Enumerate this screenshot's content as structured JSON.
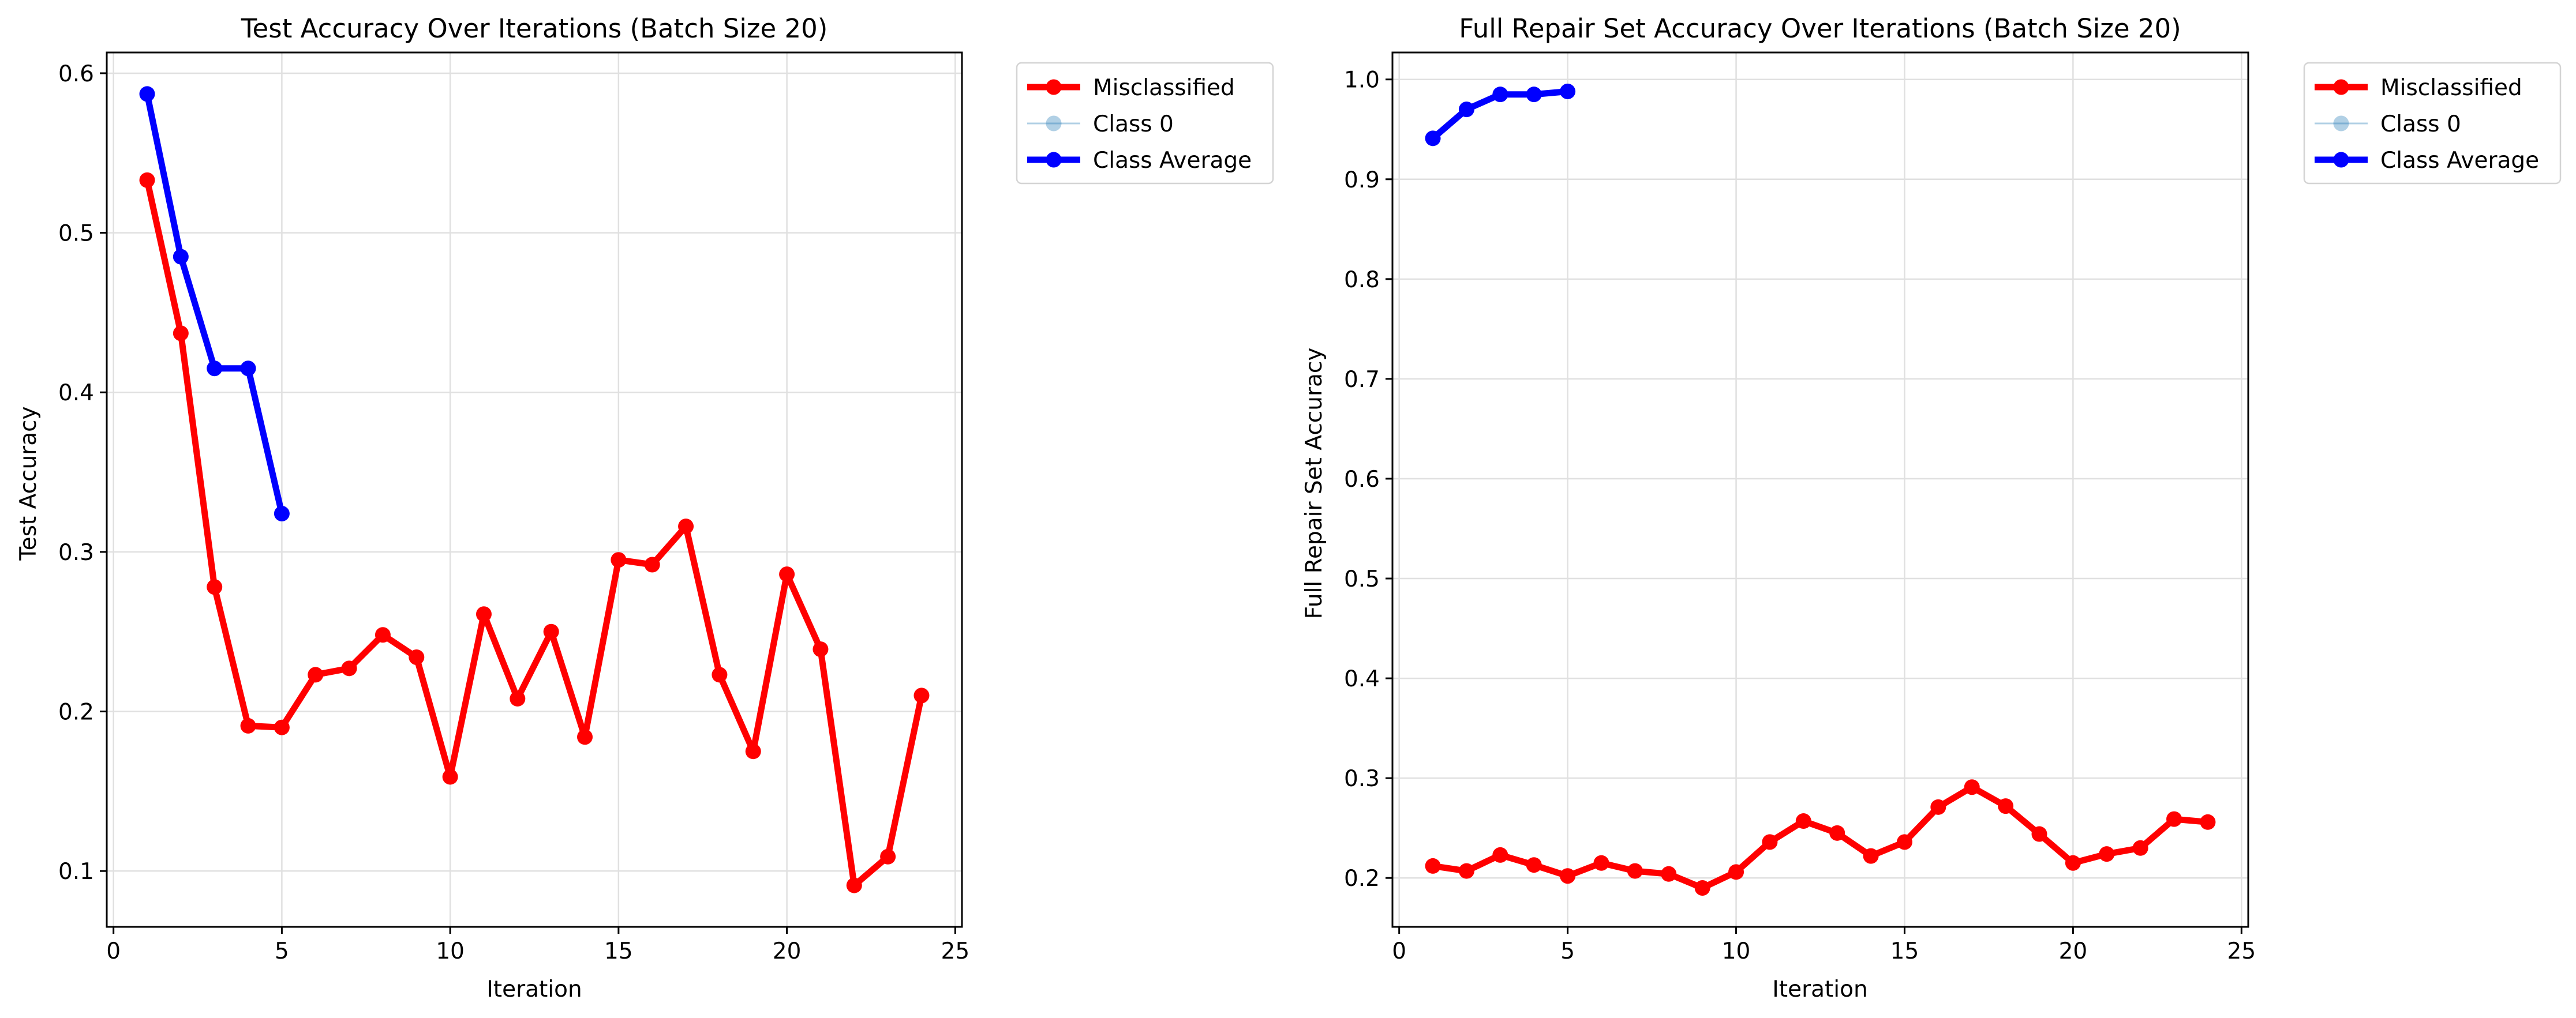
{
  "chart_data": [
    {
      "type": "line",
      "title": "Test Accuracy Over Iterations (Batch Size 20)",
      "xlabel": "Iteration",
      "ylabel": "Test Accuracy",
      "xlim": [
        -0.2,
        25.2
      ],
      "ylim": [
        0.065,
        0.613
      ],
      "xticks": [
        0,
        5,
        10,
        15,
        20,
        25
      ],
      "yticks": [
        0.1,
        0.2,
        0.3,
        0.4,
        0.5,
        0.6
      ],
      "grid": true,
      "legend_position": "outside-right",
      "series": [
        {
          "name": "Misclassified",
          "color": "#ff0000",
          "x": [
            1,
            2,
            3,
            4,
            5,
            6,
            7,
            8,
            9,
            10,
            11,
            12,
            13,
            14,
            15,
            16,
            17,
            18,
            19,
            20,
            21,
            22,
            23,
            24
          ],
          "y": [
            0.533,
            0.437,
            0.278,
            0.191,
            0.19,
            0.223,
            0.227,
            0.248,
            0.234,
            0.159,
            0.261,
            0.208,
            0.25,
            0.184,
            0.295,
            0.292,
            0.316,
            0.223,
            0.175,
            0.286,
            0.239,
            0.091,
            0.109,
            0.21
          ]
        },
        {
          "name": "Class 0",
          "color": "#1f77b4",
          "x": [],
          "y": []
        },
        {
          "name": "Class Average",
          "color": "#0000ff",
          "x": [
            1,
            2,
            3,
            4,
            5
          ],
          "y": [
            0.587,
            0.485,
            0.415,
            0.415,
            0.324
          ]
        }
      ]
    },
    {
      "type": "line",
      "title": "Full Repair Set Accuracy Over Iterations (Batch Size 20)",
      "xlabel": "Iteration",
      "ylabel": "Full Repair Set Accuracy",
      "xlim": [
        -0.2,
        25.2
      ],
      "ylim": [
        0.151,
        1.027
      ],
      "xticks": [
        0,
        5,
        10,
        15,
        20,
        25
      ],
      "yticks": [
        0.2,
        0.3,
        0.4,
        0.5,
        0.6,
        0.7,
        0.8,
        0.9,
        1.0
      ],
      "grid": true,
      "legend_position": "outside-right",
      "series": [
        {
          "name": "Misclassified",
          "color": "#ff0000",
          "x": [
            1,
            2,
            3,
            4,
            5,
            6,
            7,
            8,
            9,
            10,
            11,
            12,
            13,
            14,
            15,
            16,
            17,
            18,
            19,
            20,
            21,
            22,
            23,
            24
          ],
          "y": [
            0.212,
            0.207,
            0.223,
            0.213,
            0.202,
            0.215,
            0.207,
            0.204,
            0.19,
            0.206,
            0.236,
            0.257,
            0.245,
            0.222,
            0.236,
            0.271,
            0.291,
            0.272,
            0.244,
            0.215,
            0.224,
            0.23,
            0.259,
            0.256
          ]
        },
        {
          "name": "Class 0",
          "color": "#1f77b4",
          "x": [],
          "y": []
        },
        {
          "name": "Class Average",
          "color": "#0000ff",
          "x": [
            1,
            2,
            3,
            4,
            5
          ],
          "y": [
            0.941,
            0.97,
            0.985,
            0.985,
            0.988
          ]
        }
      ]
    }
  ]
}
